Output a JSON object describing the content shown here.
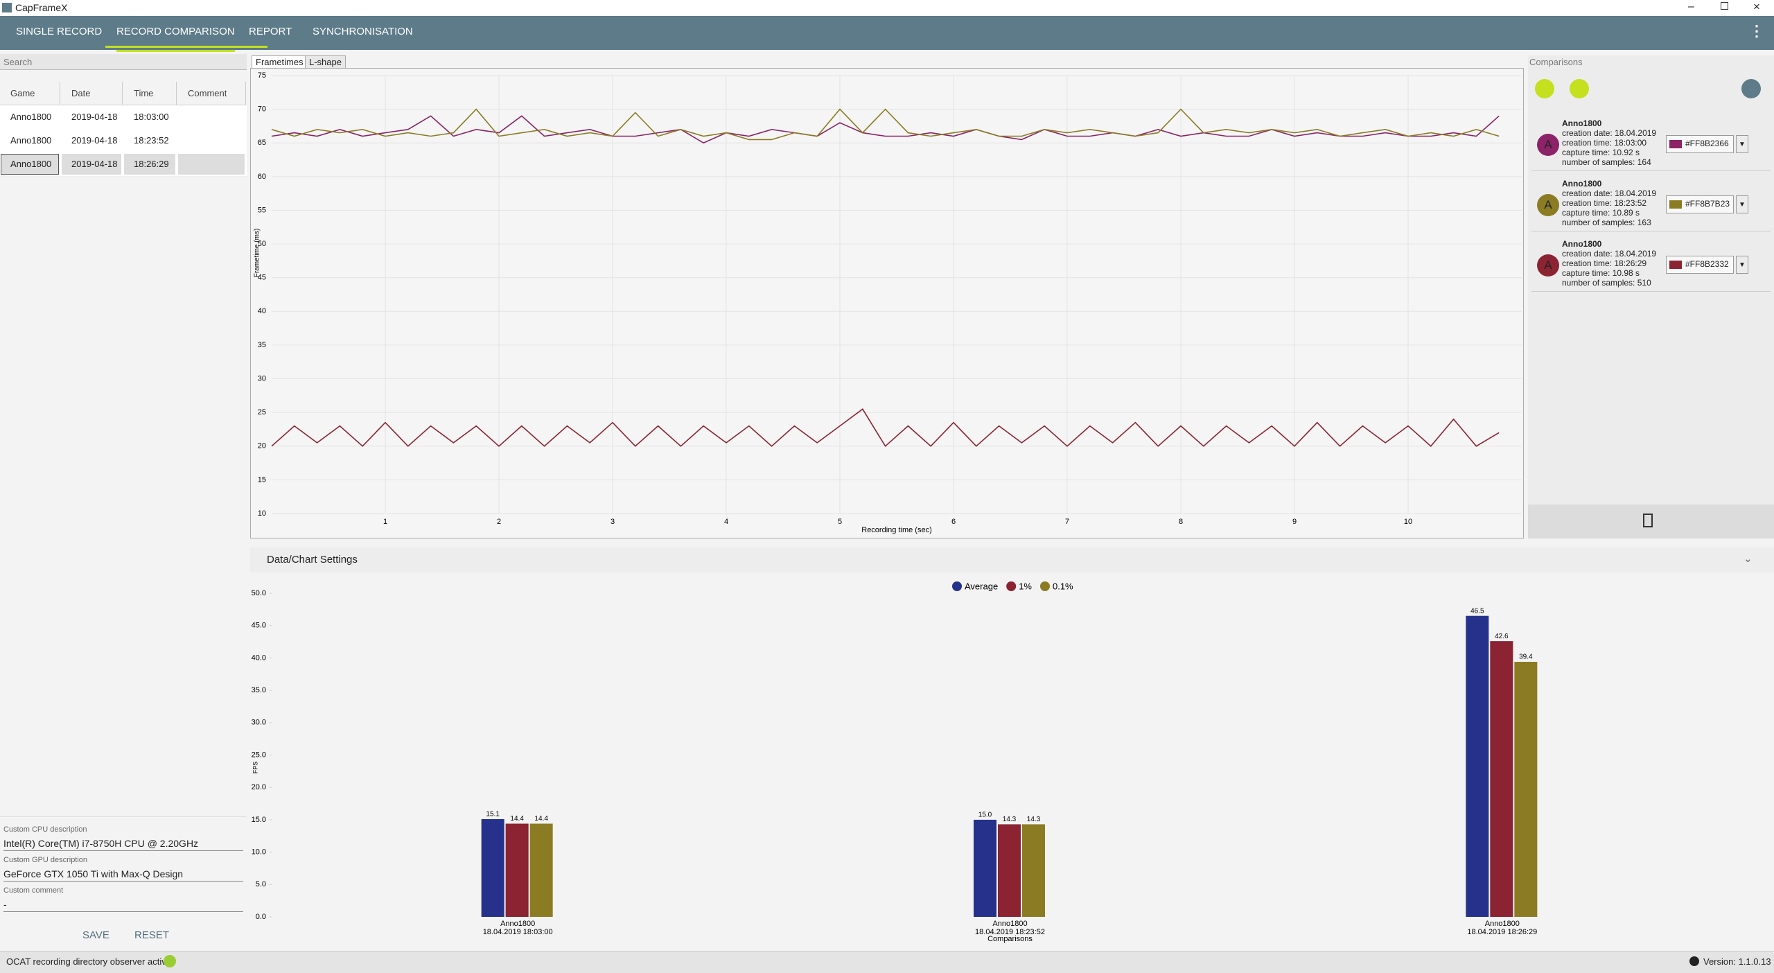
{
  "window_title": "CapFrameX",
  "nav": [
    "SINGLE RECORD",
    "RECORD COMPARISON",
    "REPORT",
    "SYNCHRONISATION"
  ],
  "search_label": "Search",
  "table": {
    "headers": [
      "Game",
      "Date",
      "Time",
      "Comment"
    ],
    "rows": [
      [
        "Anno1800",
        "2019-04-18",
        "18:03:00"
      ],
      [
        "Anno1800",
        "2019-04-18",
        "18:23:52"
      ],
      [
        "Anno1800",
        "2019-04-18",
        "18:26:29"
      ]
    ]
  },
  "cpu": {
    "label": "Custom CPU description",
    "value": "Intel(R) Core(TM) i7-8750H CPU @ 2.20GHz"
  },
  "gpu": {
    "label": "Custom GPU description",
    "value": "GeForce GTX 1050 Ti with Max-Q Design"
  },
  "comment": {
    "label": "Custom comment",
    "value": "-"
  },
  "buttons": [
    "SAVE",
    "RESET"
  ],
  "chart_tabs": [
    "Frametimes",
    "L-shape"
  ],
  "comparisons": {
    "title": "Comparisons",
    "items": [
      {
        "avatar": "A",
        "name": "Anno1800",
        "details": [
          "creation date: 18.04.2019",
          "creation time: 18:03:00",
          "capture time: 10.92 s",
          "number of samples: 164"
        ],
        "color_code": "#FF8B2366"
      },
      {
        "avatar": "A",
        "name": "Anno1800",
        "details": [
          "creation date: 18.04.2019",
          "creation time: 18:23:52",
          "capture time: 10.89 s",
          "number of samples: 163"
        ],
        "color_code": "#FF8B7B23"
      },
      {
        "avatar": "A",
        "name": "Anno1800",
        "details": [
          "creation date: 18.04.2019",
          "creation time: 18:26:29",
          "capture time: 10.98 s",
          "number of samples: 510"
        ],
        "color_code": "#FF8B2332"
      }
    ]
  },
  "settings_title": "Data/Chart Settings",
  "status": "OCAT recording directory observer active:",
  "version": "Version: 1.1.0.13",
  "chart_data": [
    {
      "type": "line",
      "x_label": "Recording time (sec)",
      "y_label": "Frametime (ms)",
      "x": [
        0,
        0.2,
        0.4,
        0.6,
        0.8,
        1.0,
        1.2,
        1.4,
        1.6,
        1.8,
        2.0,
        2.2,
        2.4,
        2.6,
        2.8,
        3.0,
        3.2,
        3.4,
        3.6,
        3.8,
        4.0,
        4.2,
        4.4,
        4.6,
        4.8,
        5.0,
        5.2,
        5.4,
        5.6,
        5.8,
        6.0,
        6.2,
        6.4,
        6.6,
        6.8,
        7.0,
        7.2,
        7.4,
        7.6,
        7.8,
        8.0,
        8.2,
        8.4,
        8.6,
        8.8,
        9.0,
        9.2,
        9.4,
        9.6,
        9.8,
        10.0,
        10.2,
        10.4,
        10.6,
        10.8
      ],
      "series": [
        {
          "color": "#8B2366",
          "values": [
            66,
            66.5,
            66,
            67,
            66,
            66.5,
            67,
            69,
            66,
            67,
            66.5,
            69,
            66,
            66.5,
            67,
            66,
            66,
            66.5,
            67,
            65,
            66.5,
            66,
            67,
            66.5,
            66,
            68,
            66.5,
            66,
            66,
            66.5,
            66,
            67,
            66,
            65.5,
            67,
            66,
            66,
            66.5,
            66,
            67,
            66,
            66.5,
            66,
            66,
            67,
            66,
            66.5,
            66,
            66,
            66.5,
            66,
            66,
            66.5,
            66,
            69
          ]
        },
        {
          "color": "#8B7B23",
          "values": [
            67,
            66,
            67,
            66.5,
            67,
            66,
            66.5,
            66,
            66.5,
            70,
            66,
            66.5,
            67,
            66,
            66.5,
            66,
            69.5,
            66,
            67,
            66,
            66.5,
            65.5,
            65.5,
            66.5,
            66,
            70,
            66.5,
            70,
            66.5,
            66,
            66.5,
            67,
            66,
            66,
            67,
            66.5,
            67,
            66.5,
            66,
            66.5,
            70,
            66.5,
            67,
            66.5,
            67,
            66.5,
            67,
            66,
            66.5,
            67,
            66,
            66.5,
            66,
            67,
            66
          ]
        },
        {
          "color": "#8B2332",
          "values": [
            20,
            23,
            20.5,
            23,
            20,
            23.5,
            20,
            23,
            20.5,
            23,
            20,
            23,
            20,
            23,
            20.5,
            23.5,
            20,
            23,
            20,
            23,
            20.5,
            23,
            20,
            23,
            20.5,
            23,
            25.5,
            20,
            23,
            20,
            23.5,
            20,
            23,
            20.5,
            23,
            20,
            23,
            20.5,
            23.5,
            20,
            23,
            20,
            23,
            20.5,
            23,
            20,
            23.5,
            20,
            23,
            20.5,
            23,
            20,
            24,
            20,
            22
          ]
        }
      ],
      "xlim": [
        0,
        11
      ],
      "ylim": [
        10,
        75
      ],
      "xticks": [
        1,
        2,
        3,
        4,
        5,
        6,
        7,
        8,
        9,
        10
      ],
      "yticks": [
        10,
        15,
        20,
        25,
        30,
        35,
        40,
        45,
        50,
        55,
        60,
        65,
        70,
        75
      ],
      "grid": true
    },
    {
      "type": "bar",
      "y_label": "FPS",
      "x_label": "Comparisons",
      "categories": [
        "Anno1800",
        "Anno1800",
        "Anno1800"
      ],
      "category_details": [
        "18.04.2019 18:03:00",
        "18.04.2019 18:23:52",
        "18.04.2019 18:26:29"
      ],
      "series": [
        {
          "name": "Average",
          "color": "#25318A",
          "values": [
            15.1,
            15.0,
            46.5
          ],
          "value_labels": [
            "15.1",
            "15.0",
            "46.5"
          ]
        },
        {
          "name": "1%",
          "color": "#8B2332",
          "values": [
            14.4,
            14.3,
            42.6
          ],
          "value_labels": [
            "14.4",
            "14.3",
            "42.6"
          ]
        },
        {
          "name": "0.1%",
          "color": "#8B7B23",
          "values": [
            14.4,
            14.3,
            39.4
          ],
          "value_labels": [
            "14.4",
            "14.3",
            "39.4"
          ]
        }
      ],
      "ylim": [
        0,
        50
      ],
      "yticks": [
        {
          "value": 0,
          "label": "0.0"
        },
        {
          "value": 5,
          "label": "5.0"
        },
        {
          "value": 10,
          "label": "10.0"
        },
        {
          "value": 15,
          "label": "15.0"
        },
        {
          "value": 20,
          "label": "20.0"
        },
        {
          "value": 25,
          "label": "25.0"
        },
        {
          "value": 30,
          "label": "30.0"
        },
        {
          "value": 35,
          "label": "35.0"
        },
        {
          "value": 40,
          "label": "40.0"
        },
        {
          "value": 45,
          "label": "45.0"
        },
        {
          "value": 50,
          "label": "50.0"
        }
      ],
      "legend": "top"
    }
  ]
}
